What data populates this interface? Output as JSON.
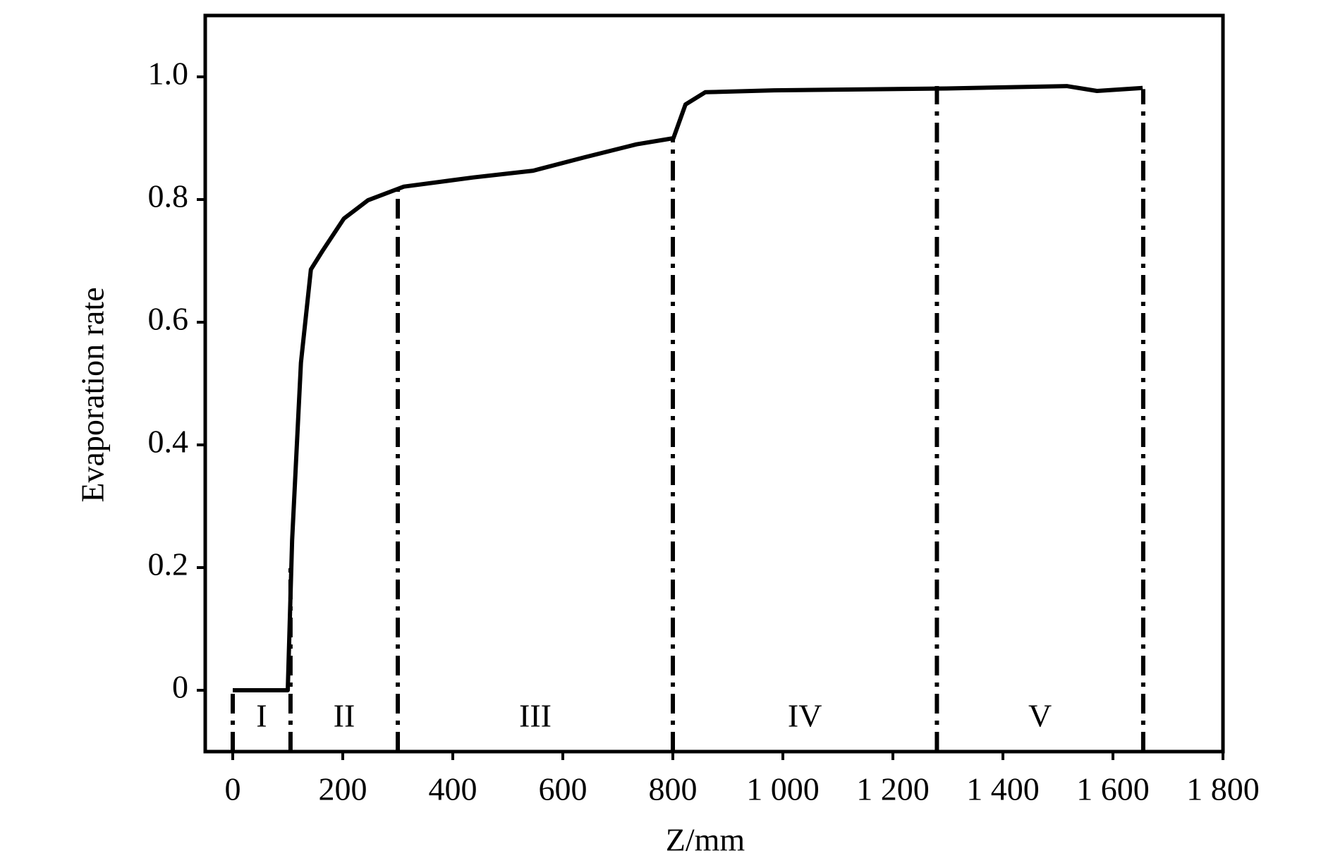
{
  "chart_data": {
    "type": "line",
    "xlabel": "Z/mm",
    "ylabel": "Evaporation rate",
    "xlim": [
      -50,
      1800
    ],
    "ylim": [
      -0.1,
      1.1
    ],
    "xticks": [
      0,
      200,
      400,
      600,
      800,
      {
        "value": 1000,
        "label": "1 000"
      },
      {
        "value": 1200,
        "label": "1 200"
      },
      {
        "value": 1400,
        "label": "1 400"
      },
      {
        "value": 1600,
        "label": "1 600"
      },
      {
        "value": 1800,
        "label": "1 800"
      }
    ],
    "yticks": [
      {
        "value": 0,
        "label": "0"
      },
      {
        "value": 0.2,
        "label": "0.2"
      },
      {
        "value": 0.4,
        "label": "0.4"
      },
      {
        "value": 0.6,
        "label": "0.6"
      },
      {
        "value": 0.8,
        "label": "0.8"
      },
      {
        "value": 1.0,
        "label": "1.0"
      }
    ],
    "color": "#000000",
    "x": [
      0,
      100,
      108,
      124,
      142,
      163,
      202,
      246,
      311,
      437,
      546,
      640,
      734,
      801,
      823,
      859,
      984,
      1297,
      1516,
      1571,
      1654
    ],
    "values": [
      0,
      0,
      0.245,
      0.534,
      0.686,
      0.716,
      0.769,
      0.799,
      0.821,
      0.836,
      0.847,
      0.869,
      0.89,
      0.9,
      0.955,
      0.975,
      0.978,
      0.981,
      0.985,
      0.977,
      0.982
    ],
    "boundaries": {
      "x": [
        0,
        105,
        300,
        800,
        1280,
        1655
      ],
      "top": [
        0,
        0.2,
        0.82,
        0.9,
        0.985,
        0.98
      ]
    },
    "regions": [
      "I",
      "II",
      "III",
      "IV",
      "V"
    ]
  }
}
